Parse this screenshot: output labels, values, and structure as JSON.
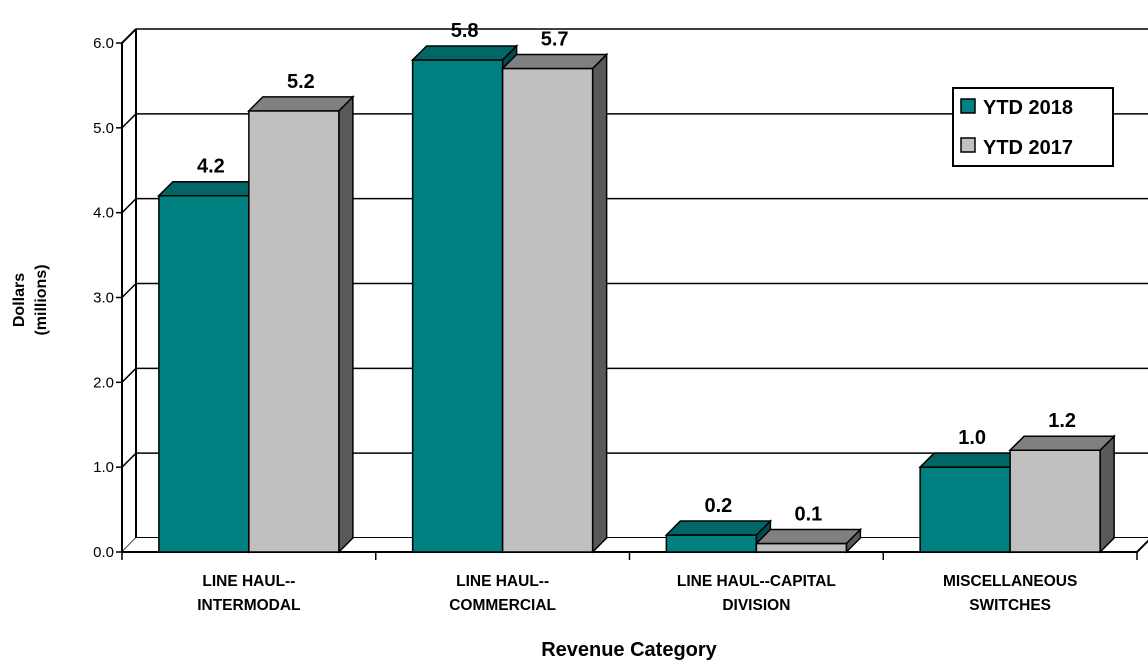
{
  "chart_data": {
    "type": "bar",
    "xlabel": "Revenue Category",
    "ylabel": [
      "Dollars",
      "(millions)"
    ],
    "ylim": [
      0,
      6
    ],
    "y_ticks": [
      "0.0",
      "1.0",
      "2.0",
      "3.0",
      "4.0",
      "5.0",
      "6.0"
    ],
    "grid": true,
    "legend_position": "top-right",
    "categories": [
      [
        "LINE HAUL--",
        "INTERMODAL"
      ],
      [
        "LINE HAUL--",
        "COMMERCIAL"
      ],
      [
        "LINE HAUL--CAPITAL",
        "DIVISION"
      ],
      [
        "MISCELLANEOUS",
        "SWITCHES"
      ]
    ],
    "series": [
      {
        "name": "YTD 2018",
        "values": [
          4.2,
          5.8,
          0.2,
          1.0
        ],
        "labels": [
          "4.2",
          "5.8",
          "0.2",
          "1.0"
        ],
        "color": "#008080"
      },
      {
        "name": "YTD 2017",
        "values": [
          5.2,
          5.7,
          0.1,
          1.2
        ],
        "labels": [
          "5.2",
          "5.7",
          "0.1",
          "1.2"
        ],
        "color": "#c0c0c0"
      }
    ]
  }
}
